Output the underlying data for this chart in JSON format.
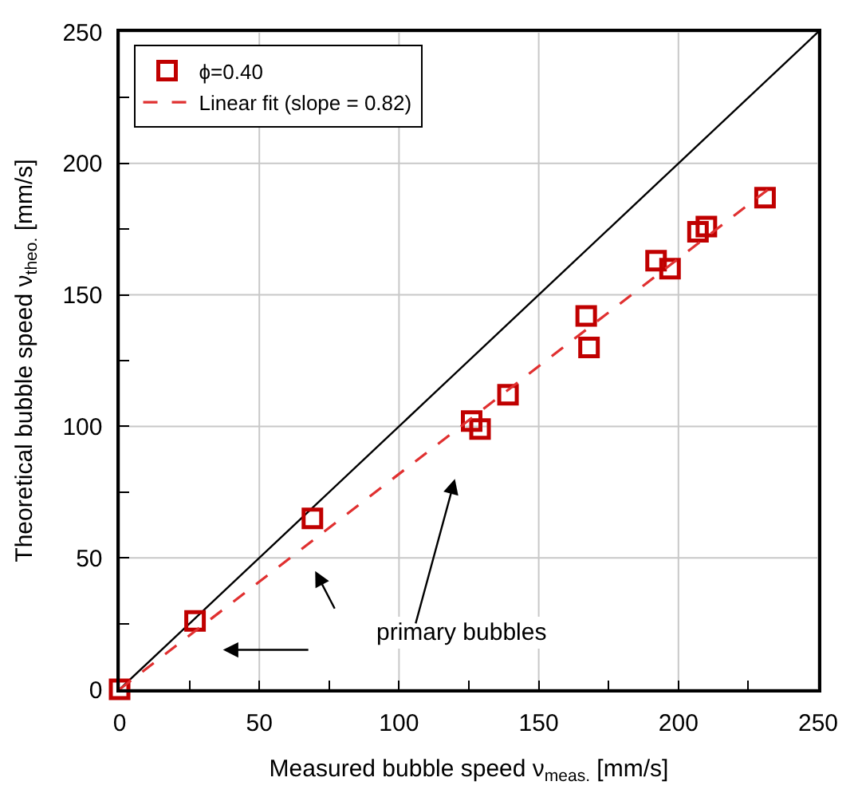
{
  "chart_data": {
    "type": "scatter",
    "xlabel": "Measured bubble speed ν$_{meas.}$ [mm/s]",
    "ylabel": "Theoretical bubble speed ν$_{theo.}$ [mm/s]",
    "xlim": [
      0,
      250
    ],
    "ylim": [
      0,
      250
    ],
    "xticks": [
      0,
      {
        "value": 25,
        "label": null
      },
      50,
      {
        "value": 75,
        "label": null
      },
      100,
      {
        "value": 125,
        "label": null
      },
      150,
      {
        "value": 175,
        "label": null
      },
      200,
      {
        "value": 225,
        "label": null
      },
      250
    ],
    "yticks": [
      0,
      {
        "value": 25,
        "label": null
      },
      50,
      {
        "value": 75,
        "label": null
      },
      100,
      {
        "value": 125,
        "label": null
      },
      150,
      {
        "value": 175,
        "label": null
      },
      200,
      {
        "value": 225,
        "label": null
      },
      250
    ],
    "grid": true,
    "legend": "top left",
    "series": [
      {
        "type": "line",
        "color": "#000000",
        "x": [
          0,
          250
        ],
        "values": [
          0,
          250
        ],
        "line_style": "solid",
        "marker": "none"
      },
      {
        "name": "ϕ=0.40",
        "color": "#c00000",
        "marker": "square",
        "x": [
          0,
          27,
          69,
          126,
          129,
          139,
          167,
          168,
          192,
          197,
          207,
          210,
          231
        ],
        "values": [
          0,
          26,
          65,
          102,
          99,
          112,
          142,
          130,
          163,
          160,
          174,
          176,
          187
        ]
      },
      {
        "type": "line",
        "name": "Linear fit (slope = 0.82)",
        "color": "#e03030",
        "line_style": "dashed",
        "marker": "none",
        "x": [
          0,
          232
        ],
        "values": [
          0,
          190
        ]
      }
    ],
    "annotations": [
      "primary bubbles"
    ]
  }
}
